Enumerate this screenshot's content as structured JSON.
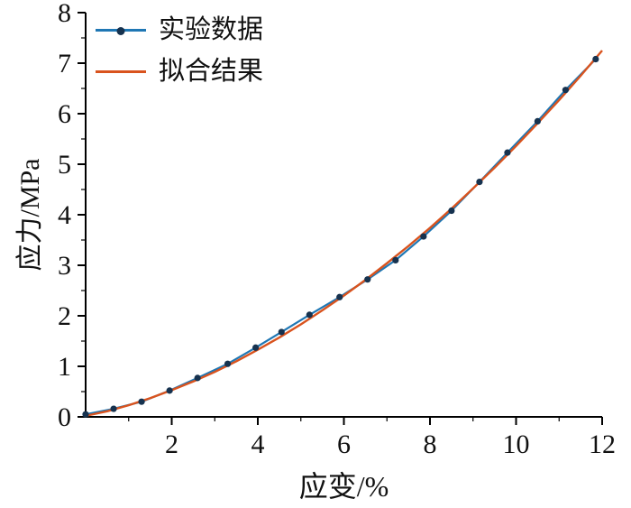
{
  "chart_data": {
    "type": "line",
    "title": "",
    "xlabel": "应变/%",
    "ylabel": "应力/MPa",
    "xlim": [
      0,
      12
    ],
    "ylim": [
      0,
      8
    ],
    "x_ticks": [
      2,
      4,
      6,
      8,
      10,
      12
    ],
    "x_minor_ticks": [
      1,
      3,
      5,
      7,
      9,
      11
    ],
    "y_ticks": [
      0,
      1,
      2,
      3,
      4,
      5,
      6,
      7,
      8
    ],
    "grid": false,
    "legend_position": "top-left",
    "axis_color": "#000000",
    "series": [
      {
        "name": "实验数据",
        "style": "line+markers",
        "color": "#1f77b4",
        "marker_color": "#16324f",
        "x": [
          0,
          0.65,
          1.3,
          1.95,
          2.6,
          3.3,
          3.95,
          4.55,
          5.2,
          5.9,
          6.55,
          7.2,
          7.85,
          8.5,
          9.15,
          9.8,
          10.5,
          11.15,
          11.85
        ],
        "y": [
          0.05,
          0.16,
          0.3,
          0.52,
          0.77,
          1.05,
          1.37,
          1.68,
          2.02,
          2.37,
          2.72,
          3.1,
          3.57,
          4.08,
          4.65,
          5.23,
          5.85,
          6.47,
          7.08
        ]
      },
      {
        "name": "拟合结果",
        "style": "line",
        "color": "#d9531e",
        "x": [
          0,
          0.5,
          1.0,
          1.5,
          2.0,
          2.5,
          3.0,
          3.5,
          4.0,
          4.5,
          5.0,
          5.5,
          6.0,
          6.5,
          7.0,
          7.5,
          8.0,
          8.5,
          9.0,
          9.5,
          10.0,
          10.5,
          11.0,
          11.5,
          12.0
        ],
        "y": [
          0.02,
          0.11,
          0.23,
          0.37,
          0.53,
          0.7,
          0.89,
          1.1,
          1.33,
          1.57,
          1.83,
          2.11,
          2.4,
          2.71,
          3.04,
          3.38,
          3.74,
          4.12,
          4.52,
          4.93,
          5.36,
          5.81,
          6.27,
          6.75,
          7.25
        ]
      }
    ]
  }
}
